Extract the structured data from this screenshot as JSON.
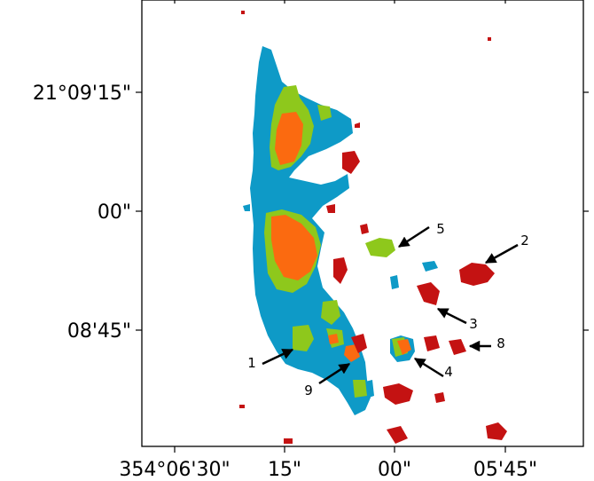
{
  "axes": {
    "y_ticks": [
      "21°09'15\"",
      "00\"",
      "08'45\""
    ],
    "x_ticks": [
      "354°06'30\"",
      "15\"",
      "00\"",
      "05'45\""
    ]
  },
  "colors": {
    "blue": "#0e9ac7",
    "green": "#8ec81c",
    "orange": "#fb6a10",
    "red": "#c41212"
  },
  "annotations": [
    {
      "label": "1"
    },
    {
      "label": "2"
    },
    {
      "label": "3"
    },
    {
      "label": "4"
    },
    {
      "label": "5"
    },
    {
      "label": "8"
    },
    {
      "label": "9"
    }
  ]
}
